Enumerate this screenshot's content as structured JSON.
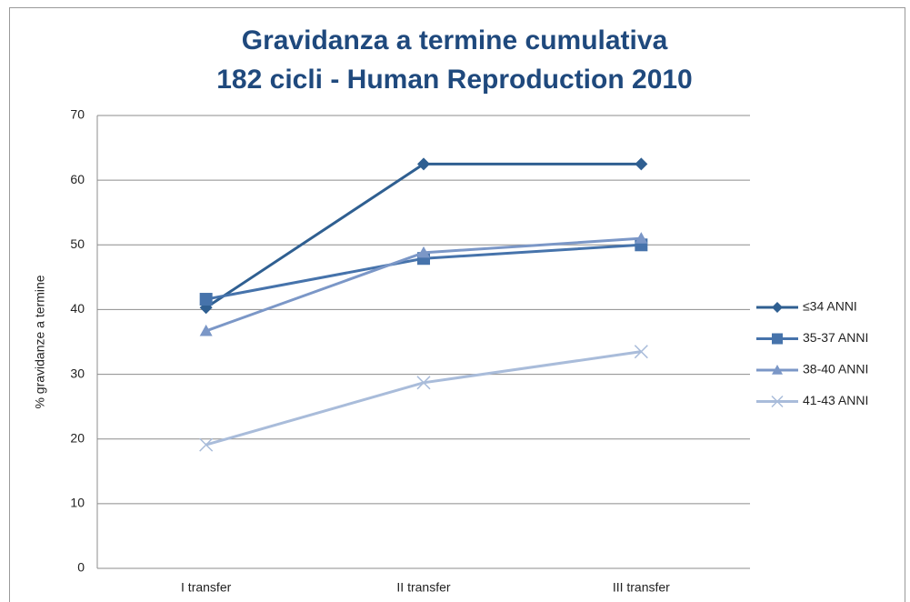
{
  "chart_data": {
    "type": "line",
    "title": [
      "Gravidanza a termine cumulativa",
      "182 cicli - Human Reproduction 2010"
    ],
    "y_label": "% gravidanze a termine",
    "categories": [
      "I transfer",
      "II transfer",
      "III transfer"
    ],
    "series": [
      {
        "name": "≤34 ANNI",
        "color": "#2f5f91",
        "marker": "diamond",
        "values": [
          40.3,
          62.5,
          62.5
        ]
      },
      {
        "name": "35-37 ANNI",
        "color": "#4673ab",
        "marker": "square",
        "values": [
          41.6,
          47.9,
          50.0
        ]
      },
      {
        "name": "38-40 ANNI",
        "color": "#7b97c7",
        "marker": "triangle",
        "values": [
          36.7,
          48.8,
          51.0
        ]
      },
      {
        "name": "41-43 ANNI",
        "color": "#a9bcda",
        "marker": "x",
        "values": [
          19.1,
          28.7,
          33.5
        ]
      }
    ],
    "ylim": [
      0,
      70
    ],
    "yticks": [
      0,
      10,
      20,
      30,
      40,
      50,
      60,
      70
    ],
    "grid": true,
    "legend": "right"
  }
}
